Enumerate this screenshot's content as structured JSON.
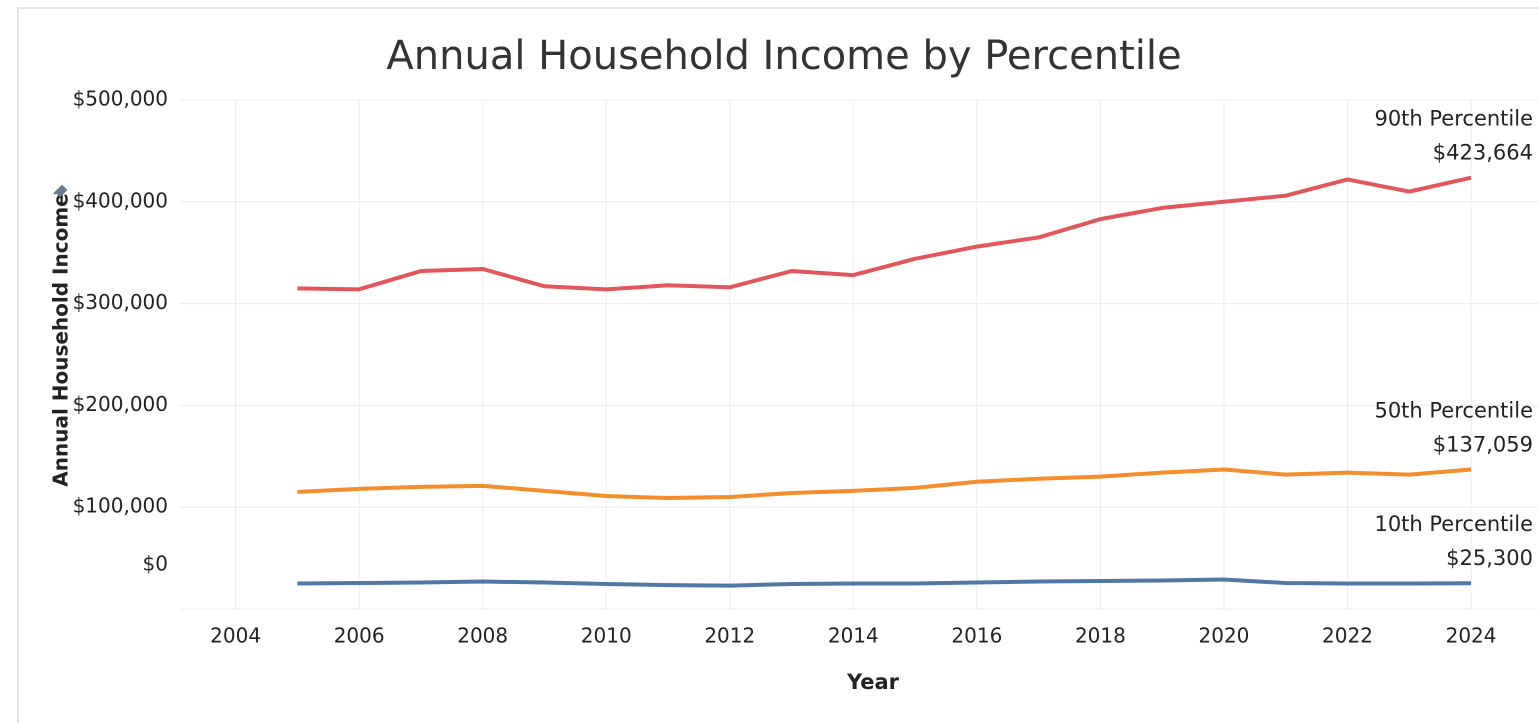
{
  "chart_data": {
    "type": "line",
    "title": "Annual Household Income by Percentile",
    "x_label": "Year",
    "y_label": "Annual Household Income",
    "x": [
      2005,
      2006,
      2007,
      2008,
      2009,
      2010,
      2011,
      2012,
      2013,
      2014,
      2015,
      2016,
      2017,
      2018,
      2019,
      2020,
      2021,
      2022,
      2023,
      2024
    ],
    "series": [
      {
        "name": "90th Percentile",
        "color": "#e15759",
        "values": [
          315000,
          314000,
          332000,
          334000,
          317000,
          314000,
          318000,
          316000,
          332000,
          328000,
          344000,
          356000,
          365000,
          383000,
          394000,
          400000,
          406000,
          422000,
          410000,
          423664
        ],
        "value_labels": [
          null,
          null,
          null,
          null,
          null,
          null,
          null,
          null,
          null,
          null,
          null,
          null,
          null,
          null,
          null,
          null,
          null,
          null,
          null,
          "$423,664"
        ]
      },
      {
        "name": "50th Percentile",
        "color": "#f28e2b",
        "values": [
          115000,
          118000,
          120000,
          121000,
          116000,
          111000,
          109000,
          110000,
          114000,
          116000,
          119000,
          125000,
          128000,
          130000,
          134000,
          137000,
          132000,
          134000,
          132000,
          137059
        ],
        "value_labels": [
          null,
          null,
          null,
          null,
          null,
          null,
          null,
          null,
          null,
          null,
          null,
          null,
          null,
          null,
          null,
          null,
          null,
          null,
          null,
          "$137,059"
        ]
      },
      {
        "name": "10th Percentile",
        "color": "#4e79a7",
        "values": [
          25000,
          25500,
          26000,
          27000,
          26000,
          24500,
          23500,
          23000,
          24500,
          25000,
          25000,
          26000,
          27000,
          27500,
          28000,
          29000,
          25500,
          25000,
          25000,
          25300
        ],
        "value_labels": [
          null,
          null,
          null,
          null,
          null,
          null,
          null,
          null,
          null,
          null,
          null,
          null,
          null,
          null,
          null,
          null,
          null,
          null,
          null,
          "$25,300"
        ]
      }
    ],
    "xlim": [
      2003.1,
      2025.1
    ],
    "xticks": [
      2004,
      2006,
      2008,
      2010,
      2012,
      2014,
      2016,
      2018,
      2020,
      2022,
      2024
    ],
    "ylim": [
      0,
      500000
    ],
    "yticks": [
      {
        "value": 0,
        "label": "$0"
      },
      {
        "value": 100000,
        "label": "$100,000"
      },
      {
        "value": 200000,
        "label": "$200,000"
      },
      {
        "value": 300000,
        "label": "$300,000"
      },
      {
        "value": 400000,
        "label": "$400,000"
      },
      {
        "value": 500000,
        "label": "$500,000"
      }
    ],
    "grid": true
  }
}
